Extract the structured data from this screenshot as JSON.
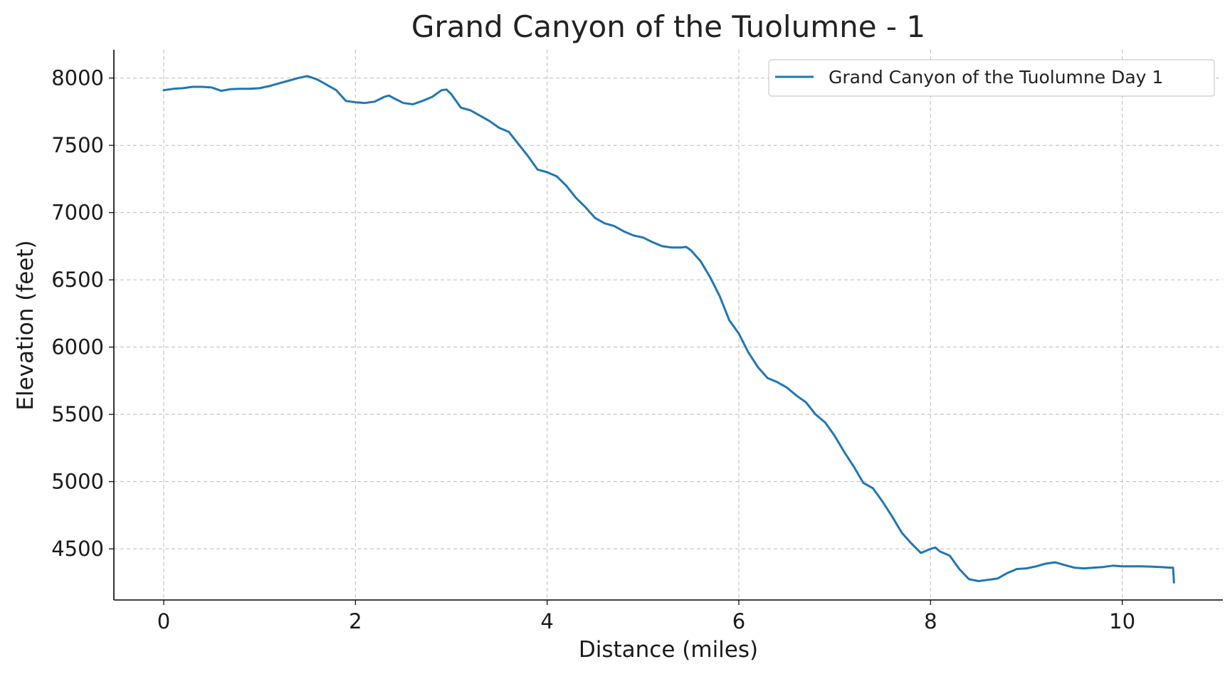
{
  "chart_data": {
    "type": "line",
    "title": "Grand Canyon of the Tuolumne - 1",
    "xlabel": "Distance (miles)",
    "ylabel": "Elevation (feet)",
    "xlim": [
      -0.52,
      11.05
    ],
    "ylim": [
      4120,
      8210
    ],
    "xticks": [
      0,
      2,
      4,
      6,
      8,
      10
    ],
    "yticks": [
      4500,
      5000,
      5500,
      6000,
      6500,
      7000,
      7500,
      8000
    ],
    "grid": true,
    "legend_position": "top-right",
    "series": [
      {
        "name": "Grand Canyon of the Tuolumne Day 1",
        "color": "#1f77b4",
        "x": [
          0,
          0.1,
          0.2,
          0.3,
          0.4,
          0.5,
          0.6,
          0.7,
          0.8,
          0.9,
          1.0,
          1.1,
          1.2,
          1.3,
          1.4,
          1.5,
          1.6,
          1.7,
          1.8,
          1.9,
          2.0,
          2.1,
          2.2,
          2.3,
          2.35,
          2.4,
          2.5,
          2.6,
          2.7,
          2.8,
          2.9,
          2.95,
          3.0,
          3.1,
          3.2,
          3.3,
          3.4,
          3.5,
          3.6,
          3.7,
          3.8,
          3.9,
          4.0,
          4.1,
          4.2,
          4.3,
          4.4,
          4.5,
          4.6,
          4.7,
          4.8,
          4.9,
          5.0,
          5.1,
          5.2,
          5.3,
          5.4,
          5.45,
          5.5,
          5.6,
          5.7,
          5.8,
          5.9,
          6.0,
          6.1,
          6.2,
          6.3,
          6.4,
          6.5,
          6.6,
          6.7,
          6.8,
          6.9,
          7.0,
          7.1,
          7.2,
          7.3,
          7.4,
          7.5,
          7.6,
          7.7,
          7.8,
          7.9,
          8.0,
          8.05,
          8.1,
          8.2,
          8.3,
          8.4,
          8.5,
          8.6,
          8.7,
          8.8,
          8.9,
          9.0,
          9.1,
          9.2,
          9.3,
          9.4,
          9.5,
          9.6,
          9.7,
          9.8,
          9.9,
          10.0,
          10.1,
          10.2,
          10.3,
          10.4,
          10.5,
          10.53,
          10.54
        ],
        "y": [
          7910,
          7920,
          7925,
          7935,
          7935,
          7930,
          7905,
          7918,
          7920,
          7920,
          7925,
          7940,
          7960,
          7980,
          8000,
          8015,
          7990,
          7950,
          7910,
          7830,
          7820,
          7815,
          7825,
          7860,
          7870,
          7850,
          7815,
          7805,
          7830,
          7860,
          7910,
          7915,
          7880,
          7780,
          7760,
          7720,
          7680,
          7630,
          7600,
          7510,
          7420,
          7320,
          7300,
          7270,
          7200,
          7110,
          7040,
          6960,
          6920,
          6900,
          6860,
          6830,
          6815,
          6780,
          6750,
          6740,
          6740,
          6745,
          6720,
          6640,
          6520,
          6380,
          6200,
          6100,
          5960,
          5850,
          5770,
          5740,
          5700,
          5640,
          5590,
          5500,
          5440,
          5340,
          5220,
          5110,
          4990,
          4950,
          4850,
          4740,
          4620,
          4540,
          4470,
          4500,
          4510,
          4480,
          4450,
          4350,
          4275,
          4260,
          4270,
          4280,
          4320,
          4350,
          4355,
          4370,
          4390,
          4400,
          4380,
          4360,
          4355,
          4360,
          4365,
          4375,
          4370,
          4370,
          4370,
          4368,
          4365,
          4360,
          4360,
          4250
        ]
      }
    ]
  }
}
